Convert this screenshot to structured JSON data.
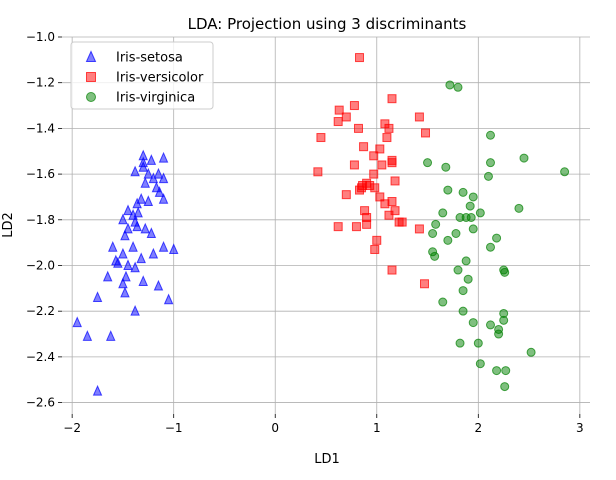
{
  "chart_data": {
    "type": "scatter",
    "title": "LDA: Projection using 3 discriminants",
    "xlabel": "LD1",
    "ylabel": "LD2",
    "xlim": [
      -2.1,
      3.1
    ],
    "ylim": [
      -2.65,
      -1.0
    ],
    "xticks": [
      -2,
      -1,
      0,
      1,
      2,
      3
    ],
    "xtick_labels": [
      "−2",
      "−1",
      "0",
      "1",
      "2",
      "3"
    ],
    "yticks": [
      -2.6,
      -2.4,
      -2.2,
      -2.0,
      -1.8,
      -1.6,
      -1.4,
      -1.2,
      -1.0
    ],
    "ytick_labels": [
      "−2.6",
      "−2.4",
      "−2.2",
      "−2.0",
      "−1.8",
      "−1.6",
      "−1.4",
      "−1.2",
      "−1.0"
    ],
    "grid": true,
    "legend_position": "top-left",
    "series": [
      {
        "name": "Iris-setosa",
        "marker": "triangle",
        "color": "#0000ff",
        "points": [
          [
            -1.3,
            -1.52
          ],
          [
            -1.22,
            -1.54
          ],
          [
            -1.1,
            -1.53
          ],
          [
            -1.3,
            -1.55
          ],
          [
            -1.3,
            -1.57
          ],
          [
            -1.25,
            -1.6
          ],
          [
            -1.38,
            -1.59
          ],
          [
            -1.2,
            -1.62
          ],
          [
            -1.15,
            -1.6
          ],
          [
            -1.1,
            -1.62
          ],
          [
            -1.17,
            -1.66
          ],
          [
            -1.28,
            -1.64
          ],
          [
            -1.14,
            -1.68
          ],
          [
            -1.1,
            -1.71
          ],
          [
            -1.25,
            -1.72
          ],
          [
            -1.36,
            -1.73
          ],
          [
            -1.32,
            -1.71
          ],
          [
            -1.35,
            -1.77
          ],
          [
            -1.45,
            -1.76
          ],
          [
            -1.4,
            -1.78
          ],
          [
            -1.5,
            -1.8
          ],
          [
            -1.38,
            -1.81
          ],
          [
            -1.36,
            -1.83
          ],
          [
            -1.45,
            -1.84
          ],
          [
            -1.48,
            -1.87
          ],
          [
            -1.28,
            -1.84
          ],
          [
            -1.22,
            -1.86
          ],
          [
            -1.1,
            -1.92
          ],
          [
            -1.2,
            -1.95
          ],
          [
            -1.4,
            -1.92
          ],
          [
            -1.0,
            -1.93
          ],
          [
            -1.6,
            -1.92
          ],
          [
            -1.5,
            -1.95
          ],
          [
            -1.55,
            -1.99
          ],
          [
            -1.57,
            -1.98
          ],
          [
            -1.32,
            -1.97
          ],
          [
            -1.45,
            -2.0
          ],
          [
            -1.38,
            -2.01
          ],
          [
            -1.47,
            -2.05
          ],
          [
            -1.65,
            -2.05
          ],
          [
            -1.5,
            -2.08
          ],
          [
            -1.3,
            -2.07
          ],
          [
            -1.15,
            -2.09
          ],
          [
            -1.48,
            -2.12
          ],
          [
            -1.05,
            -2.15
          ],
          [
            -1.75,
            -2.14
          ],
          [
            -1.38,
            -2.2
          ],
          [
            -1.95,
            -2.25
          ],
          [
            -1.85,
            -2.31
          ],
          [
            -1.62,
            -2.31
          ],
          [
            -1.75,
            -2.55
          ]
        ]
      },
      {
        "name": "Iris-versicolor",
        "marker": "square",
        "color": "#ff0000",
        "points": [
          [
            0.83,
            -1.09
          ],
          [
            1.15,
            -1.27
          ],
          [
            0.78,
            -1.3
          ],
          [
            0.63,
            -1.32
          ],
          [
            0.7,
            -1.35
          ],
          [
            0.62,
            -1.37
          ],
          [
            1.08,
            -1.38
          ],
          [
            1.42,
            -1.35
          ],
          [
            1.12,
            -1.4
          ],
          [
            0.82,
            -1.4
          ],
          [
            1.48,
            -1.42
          ],
          [
            1.1,
            -1.44
          ],
          [
            0.45,
            -1.44
          ],
          [
            0.87,
            -1.48
          ],
          [
            1.03,
            -1.49
          ],
          [
            0.97,
            -1.52
          ],
          [
            1.15,
            -1.54
          ],
          [
            1.15,
            -1.55
          ],
          [
            0.78,
            -1.56
          ],
          [
            1.05,
            -1.56
          ],
          [
            0.42,
            -1.59
          ],
          [
            0.97,
            -1.6
          ],
          [
            1.18,
            -1.63
          ],
          [
            0.9,
            -1.64
          ],
          [
            0.86,
            -1.65
          ],
          [
            0.93,
            -1.65
          ],
          [
            0.85,
            -1.66
          ],
          [
            0.83,
            -1.67
          ],
          [
            0.98,
            -1.66
          ],
          [
            0.7,
            -1.69
          ],
          [
            1.03,
            -1.7
          ],
          [
            1.15,
            -1.72
          ],
          [
            1.08,
            -1.73
          ],
          [
            0.88,
            -1.76
          ],
          [
            1.18,
            -1.76
          ],
          [
            0.9,
            -1.79
          ],
          [
            1.12,
            -1.78
          ],
          [
            1.22,
            -1.81
          ],
          [
            1.25,
            -1.81
          ],
          [
            0.62,
            -1.83
          ],
          [
            0.8,
            -1.83
          ],
          [
            0.9,
            -1.82
          ],
          [
            1.42,
            -1.84
          ],
          [
            1.0,
            -1.89
          ],
          [
            0.98,
            -1.93
          ],
          [
            1.15,
            -2.02
          ],
          [
            1.47,
            -2.08
          ]
        ]
      },
      {
        "name": "Iris-virginica",
        "marker": "circle",
        "color": "#008000",
        "points": [
          [
            1.72,
            -1.21
          ],
          [
            1.8,
            -1.22
          ],
          [
            2.12,
            -1.43
          ],
          [
            1.5,
            -1.55
          ],
          [
            1.68,
            -1.57
          ],
          [
            2.12,
            -1.55
          ],
          [
            2.45,
            -1.53
          ],
          [
            2.85,
            -1.59
          ],
          [
            2.1,
            -1.61
          ],
          [
            1.7,
            -1.67
          ],
          [
            1.85,
            -1.68
          ],
          [
            1.95,
            -1.7
          ],
          [
            1.92,
            -1.74
          ],
          [
            2.4,
            -1.75
          ],
          [
            1.65,
            -1.77
          ],
          [
            2.02,
            -1.77
          ],
          [
            1.82,
            -1.79
          ],
          [
            1.88,
            -1.79
          ],
          [
            1.93,
            -1.79
          ],
          [
            1.58,
            -1.82
          ],
          [
            1.78,
            -1.86
          ],
          [
            1.95,
            -1.84
          ],
          [
            1.55,
            -1.86
          ],
          [
            1.7,
            -1.89
          ],
          [
            2.18,
            -1.88
          ],
          [
            2.12,
            -1.92
          ],
          [
            1.55,
            -1.94
          ],
          [
            1.57,
            -1.96
          ],
          [
            1.88,
            -1.98
          ],
          [
            2.25,
            -2.02
          ],
          [
            1.8,
            -2.02
          ],
          [
            2.26,
            -2.03
          ],
          [
            1.9,
            -2.06
          ],
          [
            1.85,
            -2.11
          ],
          [
            1.65,
            -2.16
          ],
          [
            1.85,
            -2.2
          ],
          [
            2.25,
            -2.21
          ],
          [
            2.25,
            -2.24
          ],
          [
            1.95,
            -2.25
          ],
          [
            2.12,
            -2.26
          ],
          [
            2.2,
            -2.28
          ],
          [
            2.2,
            -2.3
          ],
          [
            1.82,
            -2.34
          ],
          [
            2.0,
            -2.34
          ],
          [
            2.52,
            -2.38
          ],
          [
            2.02,
            -2.43
          ],
          [
            2.27,
            -2.46
          ],
          [
            2.18,
            -2.46
          ],
          [
            2.26,
            -2.53
          ]
        ]
      }
    ]
  }
}
